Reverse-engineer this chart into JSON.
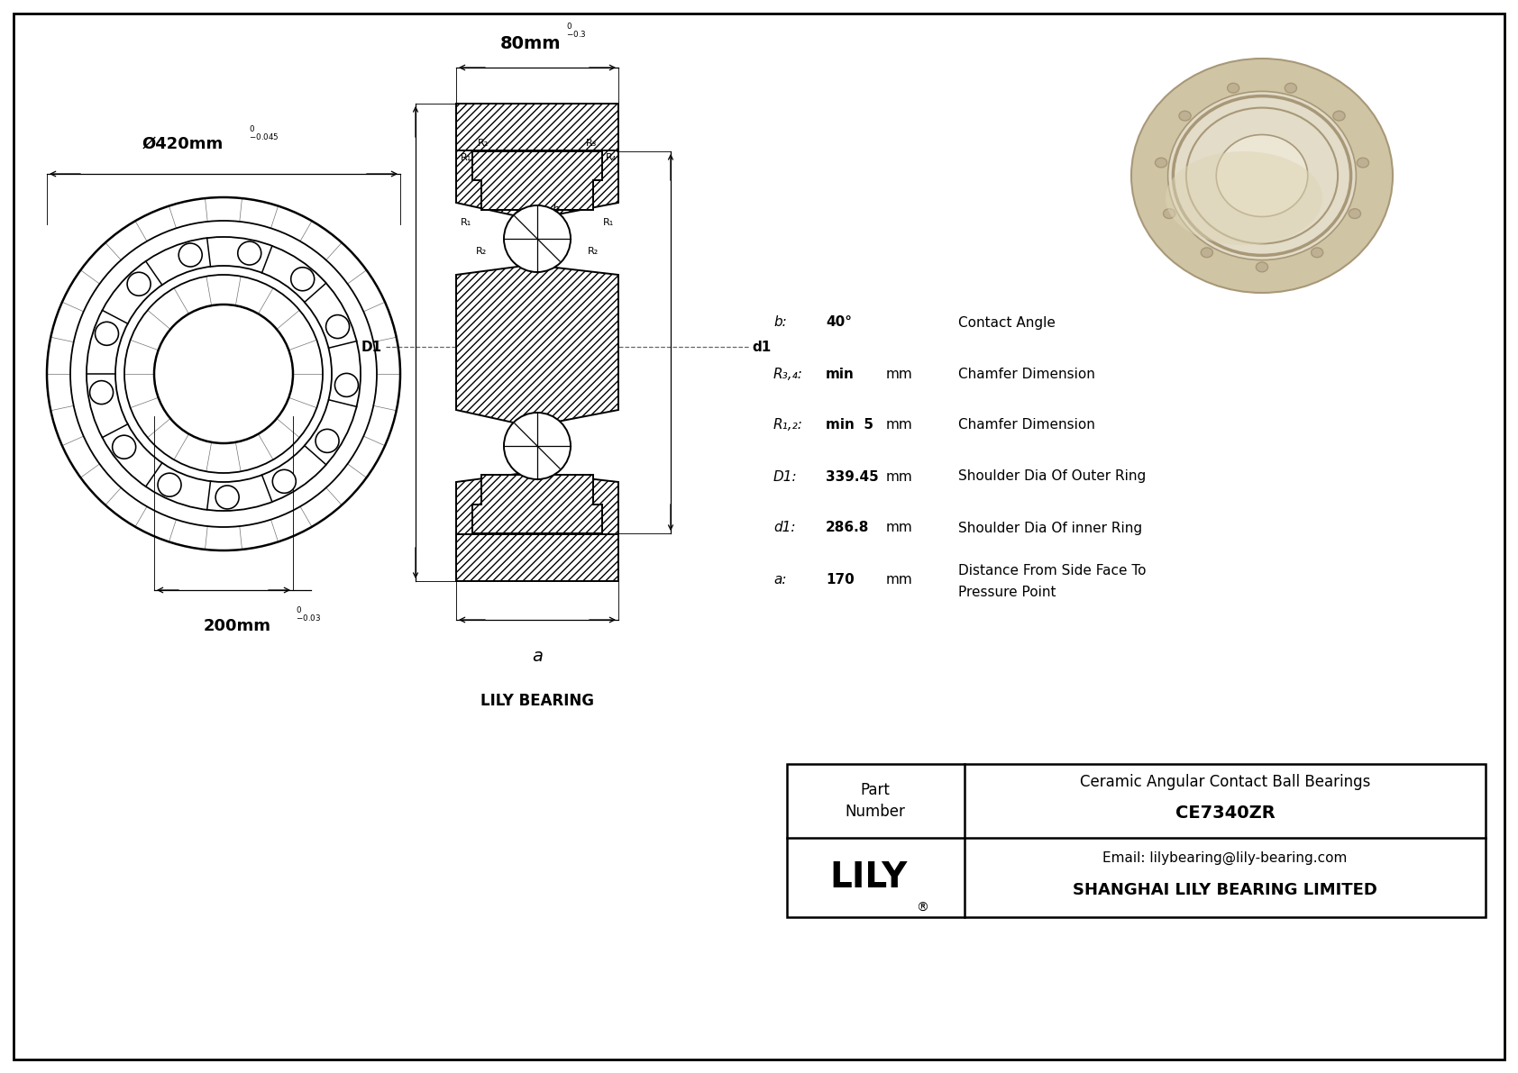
{
  "bg_color": "#ffffff",
  "outer_diam_label": "Ø420mm",
  "outer_tol_upper": "0",
  "outer_tol_lower": "-0.045",
  "width_label": "80mm",
  "width_tol_upper": "0",
  "width_tol_lower": "-0.3",
  "inner_diam_label": "200mm",
  "inner_tol_upper": "0",
  "inner_tol_lower": "-0.03",
  "b_val": "40°",
  "b_desc": "Contact Angle",
  "R34_label": "R₃,₄:",
  "R34_val": "min",
  "R34_unit": "mm",
  "R34_desc": "Chamfer Dimension",
  "R12_label": "R₁,₂:",
  "R12_val": "min  5",
  "R12_unit": "mm",
  "R12_desc": "Chamfer Dimension",
  "D1_val": "339.45",
  "D1_unit": "mm",
  "D1_desc": "Shoulder Dia Of Outer Ring",
  "d1_val": "286.8",
  "d1_unit": "mm",
  "d1_desc": "Shoulder Dia Of inner Ring",
  "a_val": "170",
  "a_unit": "mm",
  "a_desc1": "Distance From Side Face To",
  "a_desc2": "Pressure Point",
  "lily_bearing_label": "LILY BEARING",
  "company": "SHANGHAI LILY BEARING LIMITED",
  "email": "Email: lilybearing@lily-bearing.com",
  "part_number": "CE7340ZR",
  "part_desc": "Ceramic Angular Contact Ball Bearings",
  "bearing_beige": "#cfc5a5",
  "bearing_mid": "#bdb093",
  "bearing_light": "#e2dcc8",
  "bearing_dark": "#a89878",
  "bearing_hole": "#d8d0b8"
}
